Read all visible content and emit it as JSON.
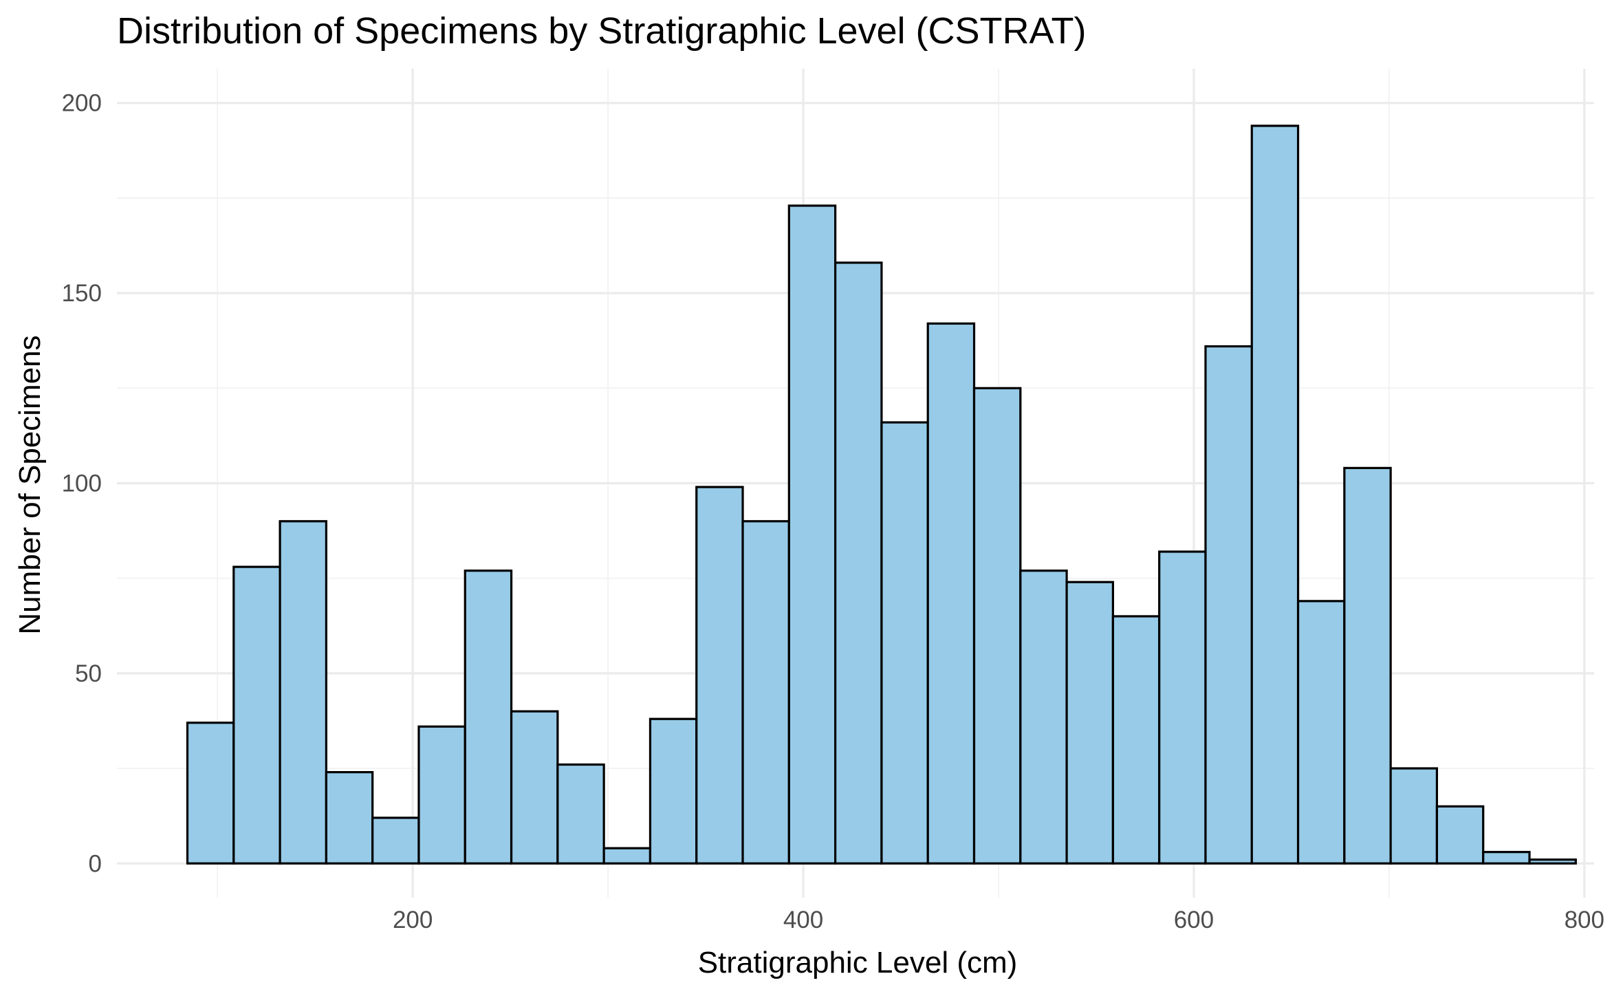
{
  "chart_data": {
    "type": "bar",
    "title": "Distribution of Specimens by Stratigraphic Level (CSTRAT)",
    "xlabel": "Stratigraphic Level (cm)",
    "ylabel": "Number of Specimens",
    "x_ticks": [
      200,
      400,
      600,
      800
    ],
    "y_ticks": [
      0,
      50,
      100,
      150,
      200
    ],
    "xlim": [
      48.5,
      805
    ],
    "ylim": [
      -9,
      209
    ],
    "grid": true,
    "bar_fill": "#97cbe8",
    "bar_outline": "#000000",
    "bins": [
      {
        "x0": 84.6,
        "x1": 108.3,
        "count": 37
      },
      {
        "x0": 108.3,
        "x1": 132.0,
        "count": 78
      },
      {
        "x0": 132.0,
        "x1": 155.7,
        "count": 90
      },
      {
        "x0": 155.7,
        "x1": 179.4,
        "count": 24
      },
      {
        "x0": 179.4,
        "x1": 203.1,
        "count": 12
      },
      {
        "x0": 203.1,
        "x1": 226.8,
        "count": 36
      },
      {
        "x0": 226.8,
        "x1": 250.5,
        "count": 77
      },
      {
        "x0": 250.5,
        "x1": 274.2,
        "count": 40
      },
      {
        "x0": 274.2,
        "x1": 297.9,
        "count": 26
      },
      {
        "x0": 297.9,
        "x1": 321.6,
        "count": 4
      },
      {
        "x0": 321.6,
        "x1": 345.3,
        "count": 38
      },
      {
        "x0": 345.3,
        "x1": 369.0,
        "count": 99
      },
      {
        "x0": 369.0,
        "x1": 392.7,
        "count": 90
      },
      {
        "x0": 392.7,
        "x1": 416.4,
        "count": 173
      },
      {
        "x0": 416.4,
        "x1": 440.1,
        "count": 158
      },
      {
        "x0": 440.1,
        "x1": 463.8,
        "count": 116
      },
      {
        "x0": 463.8,
        "x1": 487.5,
        "count": 142
      },
      {
        "x0": 487.5,
        "x1": 511.2,
        "count": 125
      },
      {
        "x0": 511.2,
        "x1": 534.9,
        "count": 77
      },
      {
        "x0": 534.9,
        "x1": 558.6,
        "count": 74
      },
      {
        "x0": 558.6,
        "x1": 582.3,
        "count": 65
      },
      {
        "x0": 582.3,
        "x1": 606.0,
        "count": 82
      },
      {
        "x0": 606.0,
        "x1": 629.7,
        "count": 136
      },
      {
        "x0": 629.7,
        "x1": 653.4,
        "count": 194
      },
      {
        "x0": 653.4,
        "x1": 677.1,
        "count": 69
      },
      {
        "x0": 677.1,
        "x1": 700.8,
        "count": 104
      },
      {
        "x0": 700.8,
        "x1": 724.5,
        "count": 25
      },
      {
        "x0": 724.5,
        "x1": 748.2,
        "count": 15
      },
      {
        "x0": 748.2,
        "x1": 771.9,
        "count": 3
      },
      {
        "x0": 771.9,
        "x1": 795.6,
        "count": 1
      }
    ]
  }
}
